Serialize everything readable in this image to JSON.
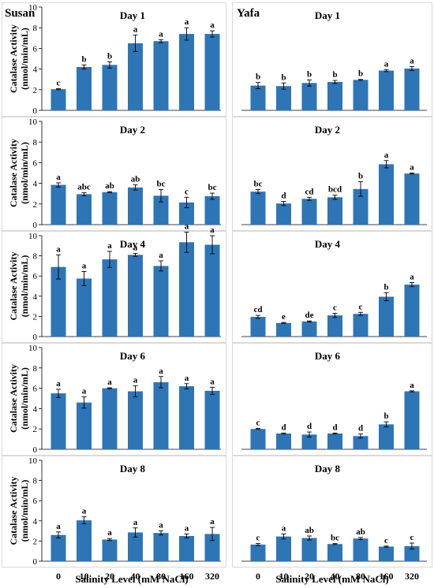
{
  "chart_data": {
    "type": "bar",
    "categories": [
      "0",
      "10",
      "20",
      "40",
      "80",
      "160",
      "320"
    ],
    "xlabel": "Salinity Level (mM NaCl)",
    "ylabel": "Catalase Activity\n(nmol/min/mL)",
    "yticks": [
      "0",
      "2",
      "4",
      "6",
      "8",
      "10"
    ],
    "ylim": [
      0,
      10
    ],
    "bar_color": "#2E75B6",
    "panel_titles": {
      "left": "Susan",
      "right": "Yafa"
    },
    "panels": [
      {
        "cultivar": "Susan",
        "day": "Day 1",
        "values": [
          2.05,
          4.2,
          4.4,
          6.5,
          6.7,
          7.4,
          7.4
        ],
        "errors": [
          0.05,
          0.2,
          0.3,
          0.8,
          0.15,
          0.6,
          0.3
        ],
        "letters": [
          "c",
          "b",
          "b",
          "a",
          "a",
          "a",
          "a"
        ]
      },
      {
        "cultivar": "Yafa",
        "day": "Day 1",
        "values": [
          2.4,
          2.35,
          2.65,
          2.75,
          2.95,
          3.85,
          4.05
        ],
        "errors": [
          0.3,
          0.3,
          0.3,
          0.15,
          0.05,
          0.1,
          0.2
        ],
        "letters": [
          "b",
          "b",
          "b",
          "b",
          "b",
          "a",
          "a"
        ]
      },
      {
        "cultivar": "Susan",
        "day": "Day 2",
        "values": [
          3.85,
          2.95,
          3.15,
          3.6,
          2.8,
          2.15,
          2.75
        ],
        "errors": [
          0.2,
          0.15,
          0.05,
          0.25,
          0.6,
          0.5,
          0.3
        ],
        "letters": [
          "a",
          "abc",
          "ab",
          "ab",
          "bc",
          "c",
          "bc"
        ]
      },
      {
        "cultivar": "Yafa",
        "day": "Day 2",
        "values": [
          3.2,
          2.05,
          2.5,
          2.65,
          3.45,
          5.85,
          4.95
        ],
        "errors": [
          0.2,
          0.2,
          0.15,
          0.2,
          0.7,
          0.35,
          0.05
        ],
        "letters": [
          "bc",
          "d",
          "cd",
          "bcd",
          "b",
          "a",
          "a"
        ]
      },
      {
        "cultivar": "Susan",
        "day": "Day 4",
        "values": [
          6.9,
          5.75,
          7.65,
          8.1,
          7.0,
          9.35,
          9.1
        ],
        "errors": [
          1.2,
          0.7,
          0.8,
          0.15,
          0.5,
          1.0,
          0.9
        ],
        "letters": [
          "a",
          "a",
          "a",
          "a",
          "a",
          "a",
          "a"
        ]
      },
      {
        "cultivar": "Yafa",
        "day": "Day 4",
        "values": [
          1.95,
          1.35,
          1.5,
          2.1,
          2.25,
          3.95,
          5.15
        ],
        "errors": [
          0.15,
          0.05,
          0.05,
          0.2,
          0.15,
          0.4,
          0.2
        ],
        "letters": [
          "cd",
          "e",
          "de",
          "c",
          "c",
          "b",
          "a"
        ]
      },
      {
        "cultivar": "Susan",
        "day": "Day 6",
        "values": [
          5.5,
          4.6,
          6.0,
          5.7,
          6.6,
          6.2,
          5.75
        ],
        "errors": [
          0.4,
          0.55,
          0.05,
          0.55,
          0.55,
          0.25,
          0.35
        ],
        "letters": [
          "a",
          "a",
          "a",
          "a",
          "a",
          "a",
          "a"
        ]
      },
      {
        "cultivar": "Yafa",
        "day": "Day 6",
        "values": [
          2.0,
          1.55,
          1.45,
          1.55,
          1.3,
          2.45,
          5.7
        ],
        "errors": [
          0.05,
          0.05,
          0.25,
          0.05,
          0.2,
          0.25,
          0.05
        ],
        "letters": [
          "c",
          "d",
          "d",
          "d",
          "d",
          "b",
          "a"
        ]
      },
      {
        "cultivar": "Susan",
        "day": "Day 8",
        "values": [
          2.6,
          4.05,
          2.15,
          2.85,
          2.8,
          2.5,
          2.7
        ],
        "errors": [
          0.3,
          0.35,
          0.1,
          0.45,
          0.2,
          0.2,
          0.65
        ],
        "letters": [
          "a",
          "a",
          "a",
          "a",
          "a",
          "a",
          "a"
        ]
      },
      {
        "cultivar": "Yafa",
        "day": "Day 8",
        "values": [
          1.65,
          2.45,
          2.3,
          1.7,
          2.25,
          1.45,
          1.5
        ],
        "errors": [
          0.1,
          0.25,
          0.2,
          0.05,
          0.1,
          0.05,
          0.3
        ],
        "letters": [
          "c",
          "a",
          "ab",
          "bc",
          "ab",
          "c",
          "c"
        ]
      }
    ]
  }
}
